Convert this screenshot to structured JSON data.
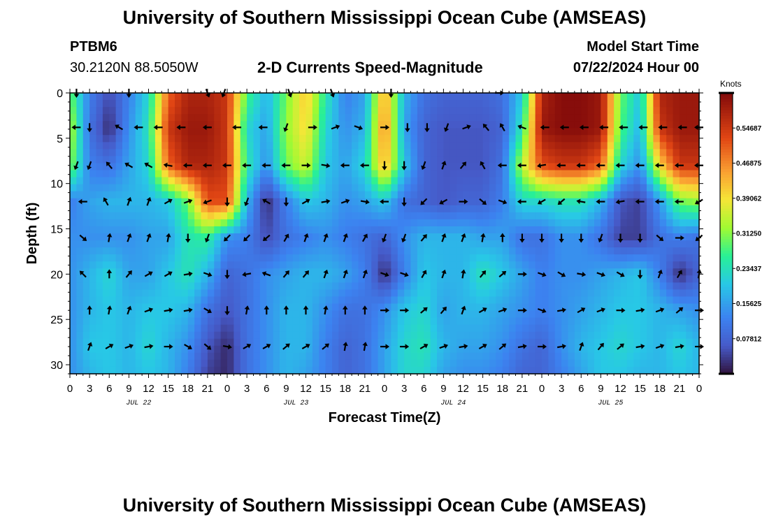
{
  "header": {
    "title": "University of Southern Mississippi Ocean Cube (AMSEAS)",
    "station": "PTBM6",
    "location": "30.2120N  88.5050W",
    "subtitle": "2-D Currents Speed-Magnitude",
    "model_start_label": "Model Start Time",
    "model_start_value": "07/22/2024 Hour 00"
  },
  "footer": {
    "title": "University of Southern Mississippi Ocean Cube (AMSEAS)"
  },
  "chart_data": {
    "type": "heatmap",
    "title": "2-D Currents Speed-Magnitude",
    "xlabel": "Forecast Time(Z)",
    "ylabel": "Depth (ft)",
    "x_tick_labels": [
      "0",
      "3",
      "6",
      "9",
      "12",
      "15",
      "18",
      "21",
      "0",
      "3",
      "6",
      "9",
      "12",
      "15",
      "18",
      "21",
      "0",
      "3",
      "6",
      "9",
      "12",
      "15",
      "18",
      "21",
      "0",
      "3",
      "6",
      "9",
      "12",
      "15",
      "18",
      "21",
      "0"
    ],
    "x_range_hours": [
      0,
      96
    ],
    "date_labels": [
      {
        "text": "JUL 22",
        "hour": 10.5
      },
      {
        "text": "JUL 23",
        "hour": 34.5
      },
      {
        "text": "JUL 24",
        "hour": 58.5
      },
      {
        "text": "JUL 25",
        "hour": 82.5
      }
    ],
    "y_ticks": [
      0,
      5,
      10,
      15,
      20,
      25,
      30
    ],
    "y_range": [
      0,
      31
    ],
    "colorbar": {
      "unit": "Knots",
      "range": [
        0,
        0.625
      ],
      "tick_values": [
        0.078125,
        0.15625,
        0.234375,
        0.3125,
        0.390625,
        0.46875,
        0.546875
      ],
      "tick_labels": [
        "0.07812",
        "0.15625",
        "0.23437",
        "0.31250",
        "0.39062",
        "0.46875",
        "0.54687"
      ]
    },
    "speed_grid": {
      "hours": [
        0,
        3,
        6,
        9,
        12,
        15,
        18,
        21,
        24,
        27,
        30,
        33,
        36,
        39,
        42,
        45,
        48,
        51,
        54,
        57,
        60,
        63,
        66,
        69,
        72,
        75,
        78,
        81,
        84,
        87,
        90,
        93,
        96
      ],
      "depths": [
        0,
        4,
        8,
        12,
        16,
        20,
        24,
        28,
        31
      ],
      "values": [
        [
          0.3,
          0.12,
          0.05,
          0.12,
          0.22,
          0.5,
          0.58,
          0.58,
          0.55,
          0.28,
          0.18,
          0.3,
          0.42,
          0.25,
          0.12,
          0.16,
          0.45,
          0.18,
          0.1,
          0.08,
          0.08,
          0.08,
          0.1,
          0.2,
          0.58,
          0.62,
          0.62,
          0.6,
          0.3,
          0.2,
          0.58,
          0.6,
          0.6
        ],
        [
          0.35,
          0.1,
          0.02,
          0.14,
          0.24,
          0.55,
          0.6,
          0.6,
          0.55,
          0.22,
          0.16,
          0.32,
          0.4,
          0.22,
          0.14,
          0.18,
          0.48,
          0.16,
          0.08,
          0.06,
          0.06,
          0.06,
          0.08,
          0.25,
          0.6,
          0.62,
          0.62,
          0.6,
          0.28,
          0.18,
          0.55,
          0.6,
          0.6
        ],
        [
          0.32,
          0.12,
          0.1,
          0.16,
          0.22,
          0.5,
          0.58,
          0.58,
          0.55,
          0.25,
          0.14,
          0.3,
          0.36,
          0.2,
          0.16,
          0.22,
          0.44,
          0.2,
          0.08,
          0.06,
          0.06,
          0.06,
          0.1,
          0.35,
          0.52,
          0.55,
          0.55,
          0.5,
          0.22,
          0.14,
          0.4,
          0.55,
          0.55
        ],
        [
          0.12,
          0.16,
          0.18,
          0.18,
          0.18,
          0.2,
          0.3,
          0.52,
          0.52,
          0.18,
          0.02,
          0.12,
          0.2,
          0.18,
          0.14,
          0.16,
          0.2,
          0.1,
          0.08,
          0.06,
          0.08,
          0.08,
          0.12,
          0.22,
          0.22,
          0.24,
          0.24,
          0.18,
          0.06,
          0.04,
          0.15,
          0.3,
          0.32
        ],
        [
          0.14,
          0.14,
          0.14,
          0.14,
          0.16,
          0.16,
          0.24,
          0.26,
          0.14,
          0.12,
          0.05,
          0.1,
          0.12,
          0.14,
          0.12,
          0.1,
          0.08,
          0.14,
          0.18,
          0.18,
          0.18,
          0.16,
          0.16,
          0.1,
          0.1,
          0.14,
          0.14,
          0.1,
          0.04,
          0.04,
          0.1,
          0.12,
          0.1
        ],
        [
          0.14,
          0.18,
          0.22,
          0.16,
          0.16,
          0.2,
          0.24,
          0.18,
          0.08,
          0.1,
          0.14,
          0.16,
          0.18,
          0.18,
          0.16,
          0.12,
          0.02,
          0.12,
          0.2,
          0.18,
          0.18,
          0.24,
          0.2,
          0.16,
          0.12,
          0.14,
          0.14,
          0.16,
          0.18,
          0.2,
          0.12,
          0.02,
          0.08
        ],
        [
          0.14,
          0.18,
          0.2,
          0.18,
          0.2,
          0.2,
          0.18,
          0.1,
          0.06,
          0.1,
          0.14,
          0.18,
          0.18,
          0.14,
          0.1,
          0.1,
          0.14,
          0.2,
          0.22,
          0.16,
          0.18,
          0.18,
          0.16,
          0.14,
          0.12,
          0.14,
          0.16,
          0.18,
          0.2,
          0.2,
          0.18,
          0.16,
          0.14
        ],
        [
          0.14,
          0.2,
          0.2,
          0.18,
          0.22,
          0.18,
          0.14,
          0.06,
          0.02,
          0.1,
          0.14,
          0.18,
          0.18,
          0.12,
          0.08,
          0.1,
          0.16,
          0.22,
          0.24,
          0.18,
          0.16,
          0.16,
          0.14,
          0.1,
          0.08,
          0.14,
          0.18,
          0.2,
          0.22,
          0.2,
          0.18,
          0.22,
          0.18
        ],
        [
          0.14,
          0.18,
          0.2,
          0.18,
          0.2,
          0.18,
          0.12,
          0.04,
          0.02,
          0.1,
          0.14,
          0.18,
          0.16,
          0.12,
          0.08,
          0.1,
          0.16,
          0.22,
          0.22,
          0.16,
          0.14,
          0.14,
          0.12,
          0.08,
          0.08,
          0.12,
          0.16,
          0.2,
          0.2,
          0.18,
          0.18,
          0.2,
          0.18
        ]
      ]
    },
    "vectors": {
      "rows": [
        {
          "depth": 0,
          "hours": [
            1,
            9,
            21,
            23.5,
            33.5,
            40,
            49,
            65.5
          ],
          "angles": [
            180,
            180,
            160,
            200,
            160,
            160,
            180,
            90
          ]
        },
        {
          "depth": 3.8,
          "hours": [
            1,
            3,
            7.5,
            10.5,
            13.5,
            17,
            21,
            25.5,
            29.5,
            33,
            37,
            40.5,
            44,
            48,
            51.5,
            54.5,
            57.5,
            60.5,
            63.5,
            66,
            69,
            72.5,
            75.5,
            78.5,
            81.5,
            84.5,
            87.5,
            90.5,
            93.5,
            96
          ],
          "angles": [
            270,
            180,
            300,
            270,
            270,
            270,
            270,
            270,
            270,
            200,
            90,
            70,
            110,
            90,
            180,
            180,
            200,
            70,
            320,
            330,
            290,
            270,
            270,
            270,
            270,
            270,
            270,
            270,
            270,
            270
          ]
        },
        {
          "depth": 8,
          "hours": [
            1,
            3,
            6,
            9,
            12,
            15,
            18,
            21,
            24,
            27,
            30,
            33,
            36,
            39,
            42,
            45,
            48,
            51,
            54,
            57,
            60,
            63,
            66,
            69,
            72,
            75,
            78,
            81,
            84,
            87,
            90,
            93,
            96
          ],
          "angles": [
            200,
            200,
            320,
            300,
            300,
            280,
            270,
            270,
            270,
            270,
            270,
            270,
            90,
            100,
            270,
            270,
            180,
            180,
            200,
            20,
            40,
            330,
            270,
            270,
            260,
            270,
            270,
            270,
            270,
            270,
            270,
            270,
            270
          ]
        },
        {
          "depth": 12,
          "hours": [
            2,
            5.5,
            9,
            12,
            15,
            18,
            21,
            24,
            27,
            30,
            33,
            36,
            39,
            42,
            45,
            48,
            51,
            54,
            57,
            60,
            63,
            66,
            69,
            72,
            75,
            78,
            81,
            84,
            87,
            90,
            93,
            96
          ],
          "angles": [
            270,
            330,
            20,
            20,
            60,
            70,
            250,
            180,
            200,
            300,
            180,
            60,
            80,
            70,
            100,
            270,
            180,
            225,
            240,
            90,
            130,
            110,
            270,
            240,
            230,
            280,
            270,
            260,
            270,
            270,
            270,
            240
          ]
        },
        {
          "depth": 16,
          "hours": [
            2,
            6,
            9,
            12,
            15,
            18,
            21,
            24,
            27,
            30,
            33,
            36,
            39,
            42,
            45,
            48,
            51,
            54,
            57,
            60,
            63,
            66,
            69,
            72,
            75,
            78,
            81,
            84,
            87,
            90,
            93,
            96
          ],
          "angles": [
            130,
            10,
            20,
            20,
            10,
            180,
            200,
            225,
            225,
            230,
            30,
            20,
            20,
            20,
            30,
            200,
            200,
            40,
            20,
            20,
            10,
            0,
            180,
            180,
            180,
            180,
            200,
            180,
            180,
            130,
            90,
            230
          ]
        },
        {
          "depth": 20,
          "hours": [
            2,
            6,
            9,
            12,
            15,
            18,
            21,
            24,
            27,
            30,
            33,
            36,
            39,
            42,
            45,
            48,
            51,
            54,
            57,
            60,
            63,
            66,
            69,
            72,
            75,
            78,
            81,
            84,
            87,
            90,
            93,
            96
          ],
          "angles": [
            315,
            0,
            40,
            60,
            60,
            80,
            110,
            180,
            260,
            290,
            40,
            40,
            20,
            20,
            20,
            110,
            110,
            30,
            20,
            10,
            40,
            50,
            90,
            110,
            120,
            100,
            110,
            120,
            180,
            20,
            30,
            10
          ]
        },
        {
          "depth": 24,
          "hours": [
            3,
            6,
            9,
            12,
            15,
            18,
            21,
            24,
            27,
            30,
            33,
            36,
            39,
            42,
            45,
            48,
            51,
            54,
            57,
            60,
            63,
            66,
            69,
            72,
            75,
            78,
            81,
            84,
            87,
            90,
            93,
            96
          ],
          "angles": [
            0,
            10,
            20,
            70,
            80,
            80,
            120,
            180,
            10,
            0,
            0,
            0,
            10,
            0,
            0,
            90,
            90,
            50,
            40,
            20,
            60,
            70,
            90,
            110,
            80,
            60,
            70,
            90,
            80,
            70,
            50,
            90
          ]
        },
        {
          "depth": 28,
          "hours": [
            3,
            6,
            9,
            12,
            15,
            18,
            21,
            24,
            27,
            30,
            33,
            36,
            39,
            42,
            45,
            48,
            51,
            54,
            57,
            60,
            63,
            66,
            69,
            72,
            75,
            78,
            81,
            84,
            87,
            90,
            93,
            96
          ],
          "angles": [
            20,
            60,
            70,
            80,
            90,
            120,
            130,
            100,
            60,
            60,
            50,
            60,
            50,
            10,
            10,
            90,
            90,
            60,
            70,
            80,
            60,
            50,
            80,
            90,
            80,
            20,
            40,
            50,
            80,
            70,
            80,
            90
          ]
        }
      ]
    }
  }
}
